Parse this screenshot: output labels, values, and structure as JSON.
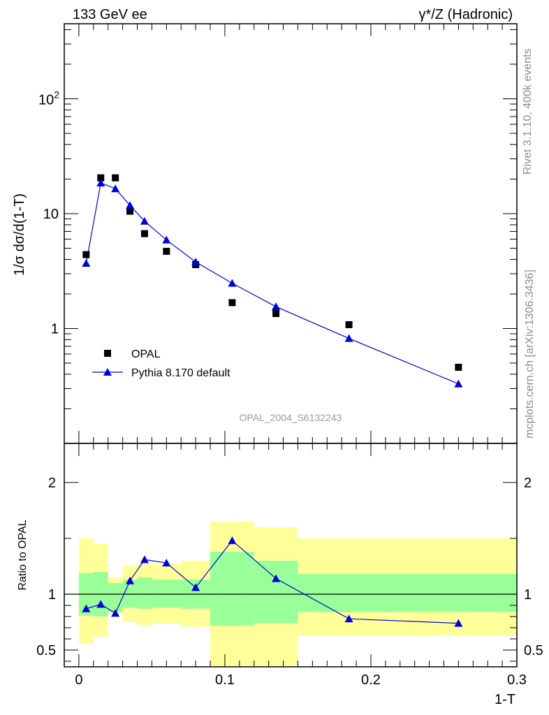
{
  "header": {
    "left": "133 GeV ee",
    "right": "γ*/Z (Hadronic)"
  },
  "side_labels": {
    "rivet": "Rivet 3.1.10,  400k events",
    "site": "mcplots.cern.ch [arXiv:1306.3436]"
  },
  "chart_data": [
    {
      "type": "scatter",
      "panel": "main",
      "ylabel": "1/σ dσ/d(1-T)",
      "yscale": "log",
      "ylim": [
        0.1,
        450
      ],
      "xlim": [
        -0.01,
        0.3
      ],
      "ytick_labels": [
        "1",
        "10",
        "10²"
      ],
      "watermark": "OPAL_2004_S6132243",
      "legend_position": "lower-left",
      "series": [
        {
          "name": "OPAL",
          "marker": "square",
          "color": "#000000",
          "x": [
            0.005,
            0.015,
            0.025,
            0.035,
            0.045,
            0.06,
            0.08,
            0.105,
            0.135,
            0.185,
            0.26
          ],
          "y": [
            4.4,
            20.5,
            20.5,
            10.5,
            6.7,
            4.7,
            3.6,
            1.68,
            1.35,
            1.08,
            0.46
          ]
        },
        {
          "name": "Pythia 8.170 default",
          "marker": "triangle",
          "color": "#0000dd",
          "x": [
            0.005,
            0.015,
            0.025,
            0.035,
            0.045,
            0.06,
            0.08,
            0.105,
            0.135,
            0.185,
            0.26
          ],
          "y": [
            3.7,
            18.5,
            16.5,
            11.8,
            8.6,
            5.9,
            3.8,
            2.48,
            1.55,
            0.82,
            0.33
          ]
        }
      ]
    },
    {
      "type": "line",
      "panel": "ratio",
      "xlabel": "1-T",
      "ylabel": "Ratio to OPAL",
      "ylim": [
        0.35,
        2.35
      ],
      "xlim": [
        -0.01,
        0.3
      ],
      "reference_line": 1,
      "xtick_labels": [
        "0",
        "0.1",
        "0.2",
        "0.3"
      ],
      "ytick_labels": [
        "0.5",
        "1",
        "2"
      ],
      "bands": [
        {
          "x0": 0.0,
          "x1": 0.01,
          "inner": [
            0.81,
            1.19
          ],
          "outer": [
            0.56,
            1.5
          ]
        },
        {
          "x0": 0.01,
          "x1": 0.02,
          "inner": [
            0.8,
            1.2
          ],
          "outer": [
            0.62,
            1.45
          ]
        },
        {
          "x0": 0.02,
          "x1": 0.03,
          "inner": [
            0.84,
            1.1
          ],
          "outer": [
            0.83,
            1.15
          ]
        },
        {
          "x0": 0.03,
          "x1": 0.04,
          "inner": [
            0.88,
            1.13
          ],
          "outer": [
            0.75,
            1.25
          ]
        },
        {
          "x0": 0.04,
          "x1": 0.05,
          "inner": [
            0.87,
            1.15
          ],
          "outer": [
            0.72,
            1.28
          ]
        },
        {
          "x0": 0.05,
          "x1": 0.07,
          "inner": [
            0.88,
            1.13
          ],
          "outer": [
            0.74,
            1.27
          ]
        },
        {
          "x0": 0.07,
          "x1": 0.09,
          "inner": [
            0.87,
            1.13
          ],
          "outer": [
            0.71,
            1.3
          ]
        },
        {
          "x0": 0.09,
          "x1": 0.12,
          "inner": [
            0.72,
            1.38
          ],
          "outer": [
            0.33,
            1.65
          ]
        },
        {
          "x0": 0.12,
          "x1": 0.15,
          "inner": [
            0.74,
            1.3
          ],
          "outer": [
            0.36,
            1.6
          ]
        },
        {
          "x0": 0.15,
          "x1": 0.3,
          "inner": [
            0.84,
            1.18
          ],
          "outer": [
            0.63,
            1.5
          ]
        }
      ],
      "series": [
        {
          "name": "Pythia 8.170 default",
          "marker": "triangle",
          "color": "#0000dd",
          "x": [
            0.005,
            0.015,
            0.025,
            0.035,
            0.045,
            0.06,
            0.08,
            0.105,
            0.135,
            0.185,
            0.26
          ],
          "y": [
            0.87,
            0.91,
            0.83,
            1.12,
            1.31,
            1.28,
            1.06,
            1.48,
            1.14,
            0.78,
            0.74
          ]
        }
      ]
    }
  ],
  "colors": {
    "inner_band": "#99ff99",
    "outer_band": "#ffff99",
    "mc_line": "#0000dd",
    "data_marker": "#000000"
  }
}
